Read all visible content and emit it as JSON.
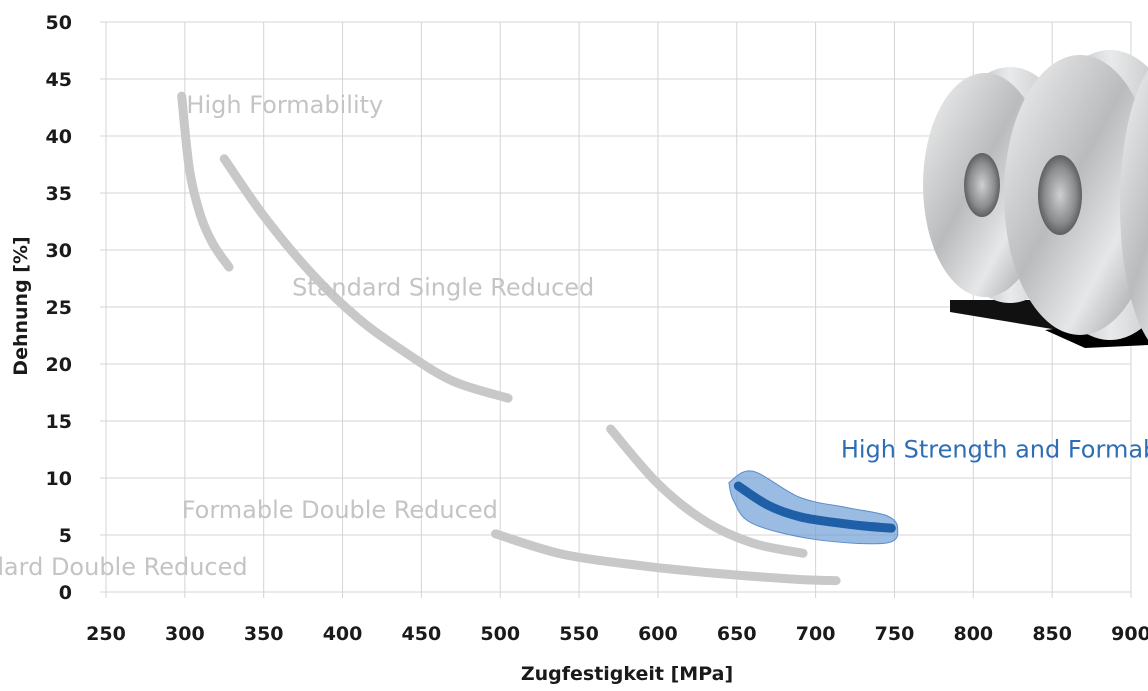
{
  "chart_data": {
    "type": "line",
    "xlabel": "Zugfestigkeit [MPa]",
    "ylabel": "Dehnung [%]",
    "xlim": [
      250,
      900
    ],
    "ylim": [
      0,
      50
    ],
    "x_ticks": [
      250,
      300,
      350,
      400,
      450,
      500,
      550,
      600,
      650,
      700,
      750,
      800,
      850,
      900
    ],
    "y_ticks": [
      0,
      5,
      10,
      15,
      20,
      25,
      30,
      35,
      40,
      45,
      50
    ],
    "grid": true,
    "colors": {
      "steel": "#c8c8c8",
      "highlight": "#1e5fa8",
      "highlight_fill": "#6f9ed6"
    },
    "series": [
      {
        "name": "High Formability",
        "color": "#c8c8c8",
        "x": [
          298,
          303,
          310,
          318,
          328
        ],
        "y": [
          43.5,
          37,
          33,
          30.5,
          28.5
        ],
        "label_pos": [
          301,
          42
        ]
      },
      {
        "name": "High Formability",
        "color": "#c8c8c8",
        "no_label": true,
        "x": [
          325,
          350,
          380,
          410,
          440,
          470,
          505
        ],
        "y": [
          38,
          33,
          28,
          24,
          21,
          18.5,
          17
        ]
      },
      {
        "name": "Standard Single Reduced",
        "color": "#c8c8c8",
        "label_only": true,
        "label_pos": [
          368,
          26
        ]
      },
      {
        "name": "Formable Double Reduced",
        "color": "#c8c8c8",
        "x": [
          570,
          600,
          630,
          660,
          692
        ],
        "y": [
          14.3,
          9.5,
          6.2,
          4.3,
          3.4
        ],
        "label_pos": [
          298,
          6.5
        ]
      },
      {
        "name": "Standard Double Reduced",
        "color": "#c8c8c8",
        "x": [
          497,
          540,
          590,
          640,
          690,
          713
        ],
        "y": [
          5.1,
          3.3,
          2.3,
          1.6,
          1.1,
          1.0
        ],
        "label_pos": [
          141,
          1.5
        ]
      },
      {
        "name": "High Strength and Formability",
        "color": "#1e5fa8",
        "highlight": true,
        "x": [
          651,
          670,
          690,
          712,
          730,
          748
        ],
        "y": [
          9.3,
          7.6,
          6.6,
          6.1,
          5.8,
          5.6
        ],
        "label_pos": [
          716,
          11.8
        ]
      }
    ],
    "highlight_region": {
      "x": [
        645,
        660,
        690,
        720,
        745,
        752,
        745,
        700,
        660,
        648,
        645
      ],
      "y": [
        9.6,
        10.6,
        8.3,
        7.4,
        6.7,
        5.6,
        4.3,
        4.6,
        6.0,
        8.0,
        9.6
      ]
    }
  },
  "image": {
    "subject": "steel coils",
    "icon": "steel-coils-photo"
  }
}
